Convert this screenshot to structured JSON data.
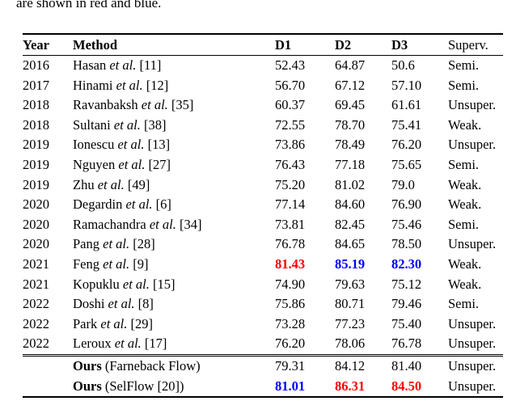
{
  "caption_fragment": "are shown in red and blue.",
  "colors": {
    "best": "#ff0000",
    "second": "#0000ff"
  },
  "table": {
    "headers": [
      "Year",
      "Method",
      "D1",
      "D2",
      "D3",
      "Superv."
    ],
    "rows": [
      {
        "year": "2016",
        "method": [
          {
            "t": "Hasan "
          },
          {
            "t": "et al.",
            "i": 1
          },
          {
            "t": " [11]"
          }
        ],
        "scores": [
          {
            "t": "52.43"
          },
          {
            "t": "64.87"
          },
          {
            "t": "50.6"
          }
        ],
        "superv": "Semi."
      },
      {
        "year": "2017",
        "method": [
          {
            "t": "Hinami "
          },
          {
            "t": "et al.",
            "i": 1
          },
          {
            "t": " [12]"
          }
        ],
        "scores": [
          {
            "t": "56.70"
          },
          {
            "t": "67.12"
          },
          {
            "t": "57.10"
          }
        ],
        "superv": "Semi."
      },
      {
        "year": "2018",
        "method": [
          {
            "t": "Ravanbaksh "
          },
          {
            "t": "et al.",
            "i": 1
          },
          {
            "t": " [35]"
          }
        ],
        "scores": [
          {
            "t": "60.37"
          },
          {
            "t": "69.45"
          },
          {
            "t": "61.61"
          }
        ],
        "superv": "Unsuper."
      },
      {
        "year": "2018",
        "method": [
          {
            "t": "Sultani "
          },
          {
            "t": "et al.",
            "i": 1
          },
          {
            "t": " [38]"
          }
        ],
        "scores": [
          {
            "t": "72.55"
          },
          {
            "t": "78.70"
          },
          {
            "t": "75.41"
          }
        ],
        "superv": "Weak."
      },
      {
        "year": "2019",
        "method": [
          {
            "t": "Ionescu "
          },
          {
            "t": "et al.",
            "i": 1
          },
          {
            "t": " [13]"
          }
        ],
        "scores": [
          {
            "t": "73.86"
          },
          {
            "t": "78.49"
          },
          {
            "t": "76.20"
          }
        ],
        "superv": "Unsuper."
      },
      {
        "year": "2019",
        "method": [
          {
            "t": "Nguyen "
          },
          {
            "t": "et al.",
            "i": 1
          },
          {
            "t": " [27]"
          }
        ],
        "scores": [
          {
            "t": "76.43"
          },
          {
            "t": "77.18"
          },
          {
            "t": "75.65"
          }
        ],
        "superv": "Semi."
      },
      {
        "year": "2019",
        "method": [
          {
            "t": "Zhu "
          },
          {
            "t": "et al.",
            "i": 1
          },
          {
            "t": " [49]"
          }
        ],
        "scores": [
          {
            "t": "75.20"
          },
          {
            "t": "81.02"
          },
          {
            "t": "79.0"
          }
        ],
        "superv": "Weak."
      },
      {
        "year": "2020",
        "method": [
          {
            "t": "Degardin "
          },
          {
            "t": "et al.",
            "i": 1
          },
          {
            "t": " [6]"
          }
        ],
        "scores": [
          {
            "t": "77.14"
          },
          {
            "t": "84.60"
          },
          {
            "t": "76.90"
          }
        ],
        "superv": "Weak."
      },
      {
        "year": "2020",
        "method": [
          {
            "t": "Ramachandra "
          },
          {
            "t": "et al.",
            "i": 1
          },
          {
            "t": " [34]"
          }
        ],
        "scores": [
          {
            "t": "73.81"
          },
          {
            "t": "82.45"
          },
          {
            "t": "75.46"
          }
        ],
        "superv": "Semi."
      },
      {
        "year": "2020",
        "method": [
          {
            "t": "Pang "
          },
          {
            "t": "et al.",
            "i": 1
          },
          {
            "t": " [28]"
          }
        ],
        "scores": [
          {
            "t": "76.78"
          },
          {
            "t": "84.65"
          },
          {
            "t": "78.50"
          }
        ],
        "superv": "Unsuper."
      },
      {
        "year": "2021",
        "method": [
          {
            "t": "Feng "
          },
          {
            "t": "et al.",
            "i": 1
          },
          {
            "t": " [9]"
          }
        ],
        "scores": [
          {
            "t": "81.43",
            "c": "best"
          },
          {
            "t": "85.19",
            "c": "second"
          },
          {
            "t": "82.30",
            "c": "second"
          }
        ],
        "superv": "Weak."
      },
      {
        "year": "2021",
        "method": [
          {
            "t": "Kopuklu "
          },
          {
            "t": "et al.",
            "i": 1
          },
          {
            "t": " [15]"
          }
        ],
        "scores": [
          {
            "t": "74.90"
          },
          {
            "t": "79.63"
          },
          {
            "t": "75.12"
          }
        ],
        "superv": "Weak."
      },
      {
        "year": "2022",
        "method": [
          {
            "t": "Doshi "
          },
          {
            "t": "et al.",
            "i": 1
          },
          {
            "t": " [8]"
          }
        ],
        "scores": [
          {
            "t": "75.86"
          },
          {
            "t": "80.71"
          },
          {
            "t": "79.46"
          }
        ],
        "superv": "Semi."
      },
      {
        "year": "2022",
        "method": [
          {
            "t": "Park "
          },
          {
            "t": "et al.",
            "i": 1
          },
          {
            "t": " [29]"
          }
        ],
        "scores": [
          {
            "t": "73.28"
          },
          {
            "t": "77.23"
          },
          {
            "t": "75.40"
          }
        ],
        "superv": "Unsuper."
      },
      {
        "year": "2022",
        "method": [
          {
            "t": "Leroux "
          },
          {
            "t": "et al.",
            "i": 1
          },
          {
            "t": " [17]"
          }
        ],
        "scores": [
          {
            "t": "76.20"
          },
          {
            "t": "78.06"
          },
          {
            "t": "76.78"
          }
        ],
        "superv": "Unsuper."
      }
    ],
    "ours_rows": [
      {
        "year": "",
        "method": [
          {
            "t": "Ours",
            "b": 1
          },
          {
            "t": " (Farneback Flow)"
          }
        ],
        "scores": [
          {
            "t": "79.31"
          },
          {
            "t": "84.12"
          },
          {
            "t": "81.40"
          }
        ],
        "superv": "Unsuper."
      },
      {
        "year": "",
        "method": [
          {
            "t": "Ours",
            "b": 1
          },
          {
            "t": " (SelFlow [20])"
          }
        ],
        "scores": [
          {
            "t": "81.01",
            "c": "second"
          },
          {
            "t": "86.31",
            "c": "best"
          },
          {
            "t": "84.50",
            "c": "best"
          }
        ],
        "superv": "Unsuper."
      }
    ]
  }
}
